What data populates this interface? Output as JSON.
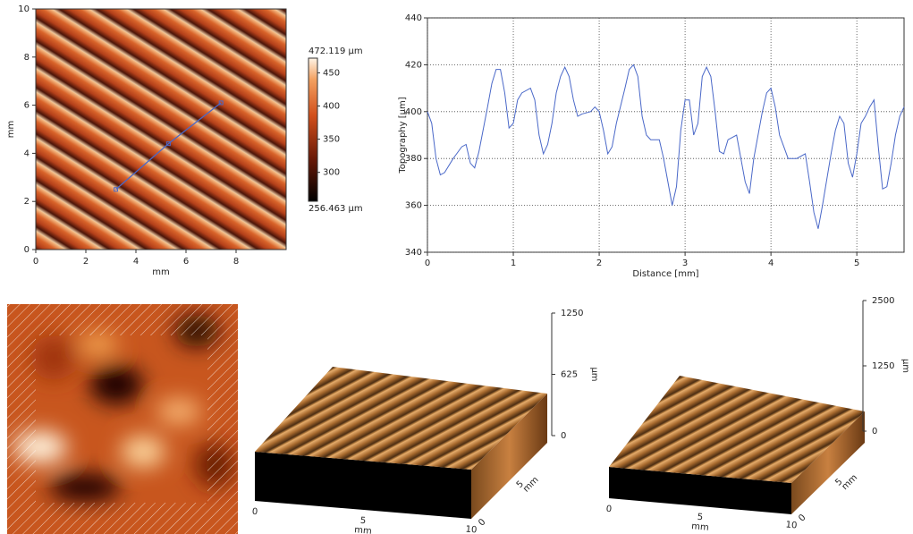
{
  "chart_data": [
    {
      "type": "heatmap",
      "xlabel": "mm",
      "ylabel": "mm",
      "xlim": [
        0,
        10
      ],
      "xticks": [
        0,
        2,
        4,
        6,
        8
      ],
      "ylim": [
        0,
        10
      ],
      "yticks": [
        0,
        2,
        4,
        6,
        8,
        10
      ],
      "clim": [
        256.463,
        472.119
      ],
      "clim_labels": [
        "256.463 µm",
        "472.119 µm"
      ],
      "cticks": [
        300,
        350,
        400,
        450
      ],
      "profile_line": {
        "x": [
          3.2,
          5.3,
          7.4
        ],
        "y": [
          2.5,
          4.4,
          6.1
        ],
        "color": "#4a68c8"
      }
    },
    {
      "type": "line",
      "xlabel": "Distance [mm]",
      "ylabel": "Topography [µm]",
      "xlim": [
        0,
        5.55
      ],
      "xticks": [
        0,
        1,
        2,
        3,
        4,
        5
      ],
      "ylim": [
        340,
        440
      ],
      "yticks": [
        340,
        360,
        380,
        400,
        420,
        440
      ],
      "grid": true,
      "series": [
        {
          "color": "#4a68c8",
          "x": [
            0,
            0.05,
            0.1,
            0.15,
            0.2,
            0.3,
            0.4,
            0.45,
            0.5,
            0.55,
            0.6,
            0.7,
            0.75,
            0.8,
            0.85,
            0.9,
            0.95,
            1.0,
            1.05,
            1.1,
            1.2,
            1.25,
            1.3,
            1.35,
            1.4,
            1.45,
            1.5,
            1.55,
            1.6,
            1.65,
            1.7,
            1.75,
            1.8,
            1.9,
            1.95,
            2.0,
            2.05,
            2.1,
            2.15,
            2.2,
            2.3,
            2.35,
            2.4,
            2.45,
            2.5,
            2.55,
            2.6,
            2.7,
            2.75,
            2.8,
            2.85,
            2.9,
            2.95,
            3.0,
            3.05,
            3.1,
            3.15,
            3.2,
            3.25,
            3.3,
            3.35,
            3.4,
            3.45,
            3.5,
            3.6,
            3.65,
            3.7,
            3.75,
            3.8,
            3.9,
            3.95,
            4.0,
            4.05,
            4.1,
            4.15,
            4.2,
            4.3,
            4.4,
            4.45,
            4.5,
            4.55,
            4.6,
            4.7,
            4.75,
            4.8,
            4.85,
            4.9,
            4.95,
            5.0,
            5.05,
            5.1,
            5.15,
            5.2,
            5.25,
            5.3,
            5.35,
            5.4,
            5.45,
            5.5,
            5.55
          ],
          "values": [
            400,
            395,
            380,
            373,
            374,
            380,
            385,
            386,
            378,
            376,
            383,
            402,
            412,
            418,
            418,
            408,
            393,
            395,
            405,
            408,
            410,
            405,
            390,
            382,
            386,
            395,
            408,
            415,
            419,
            415,
            405,
            398,
            399,
            400,
            402,
            400,
            392,
            382,
            385,
            395,
            410,
            418,
            420,
            415,
            398,
            390,
            388,
            388,
            380,
            370,
            360,
            368,
            392,
            405,
            405,
            390,
            395,
            415,
            419,
            415,
            400,
            383,
            382,
            388,
            390,
            380,
            370,
            365,
            380,
            400,
            408,
            410,
            402,
            390,
            385,
            380,
            380,
            382,
            370,
            357,
            350,
            360,
            382,
            392,
            398,
            395,
            378,
            372,
            382,
            395,
            398,
            402,
            405,
            385,
            367,
            368,
            378,
            390,
            398,
            402
          ]
        }
      ]
    },
    {
      "type": "surface",
      "xlim": [
        0,
        10
      ],
      "xticks": [
        0,
        5,
        10
      ],
      "xlabel": "mm",
      "ylim": [
        0,
        10
      ],
      "yticks": [
        0,
        5
      ],
      "ylabel": "mm",
      "zlim": [
        0,
        1250
      ],
      "zticks": [
        0,
        625,
        1250
      ],
      "zlabel": "µm"
    },
    {
      "type": "surface",
      "xlim": [
        0,
        10
      ],
      "xticks": [
        0,
        5,
        10
      ],
      "xlabel": "mm",
      "ylim": [
        0,
        10
      ],
      "yticks": [
        0,
        5
      ],
      "ylabel": "mm",
      "zlim": [
        0,
        2500
      ],
      "zticks": [
        0,
        1250,
        2500
      ],
      "zlabel": "µm"
    }
  ]
}
